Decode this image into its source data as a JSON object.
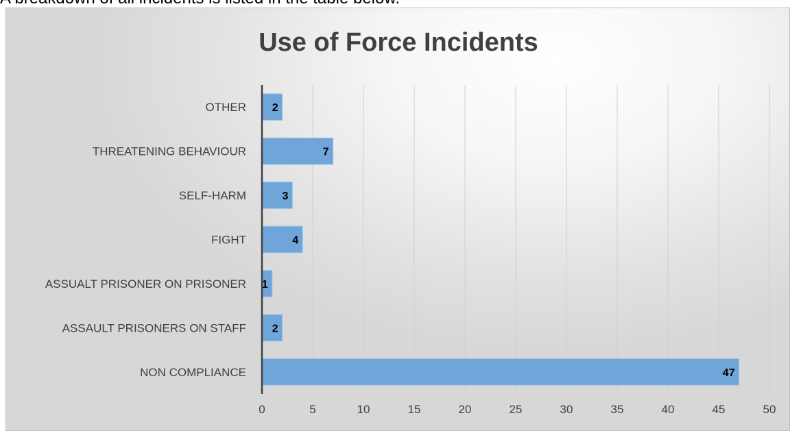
{
  "page": {
    "caption": "A breakdown of all incidents is listed in the table below."
  },
  "colors": {
    "bar_fill": "#6fa5d8",
    "bar_stroke": "#9cc3e6",
    "gridline": "#cfcfcf",
    "axis": "#404040",
    "title": "#404040"
  },
  "chart_data": {
    "type": "bar",
    "orientation": "horizontal",
    "title": "Use of Force Incidents",
    "xlabel": "",
    "ylabel": "",
    "categories": [
      "OTHER",
      "THREATENING BEHAVIOUR",
      "SELF-HARM",
      "FIGHT",
      "ASSUALT PRISONER ON PRISONER",
      "ASSAULT PRISONERS ON STAFF",
      "NON COMPLIANCE"
    ],
    "values": [
      2,
      7,
      3,
      4,
      1,
      2,
      47
    ],
    "xlim": [
      0,
      50
    ],
    "xticks": [
      0,
      5,
      10,
      15,
      20,
      25,
      30,
      35,
      40,
      45,
      50
    ],
    "grid": "vertical",
    "legend": "none",
    "data_labels": "inside-end"
  }
}
